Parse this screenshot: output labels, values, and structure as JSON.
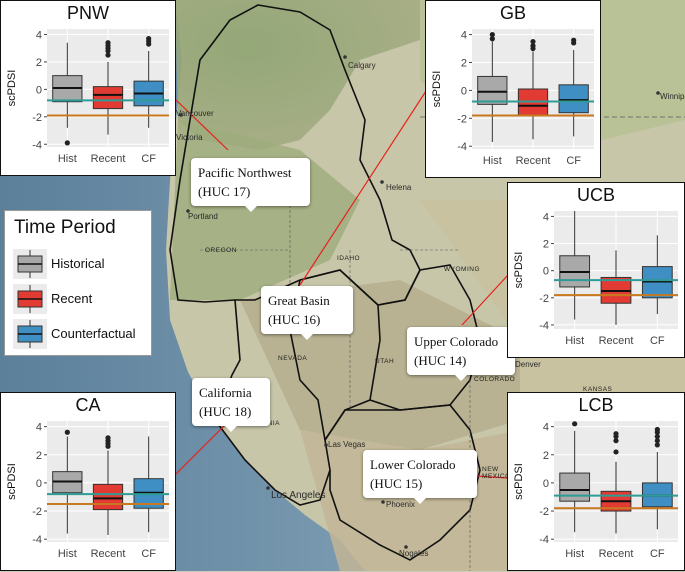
{
  "colors": {
    "historical": "#a9a9a9",
    "recent": "#e23b33",
    "counterfactual": "#3f8fc4",
    "recent_line": "#c8781f",
    "hist_line": "#2f9b95",
    "connector": "#e8201c",
    "border": "#111111"
  },
  "legend": {
    "title": "Time Period",
    "items": [
      {
        "label": "Historical",
        "color_key": "historical"
      },
      {
        "label": "Recent",
        "color_key": "recent"
      },
      {
        "label": "Counterfactual",
        "color_key": "counterfactual"
      }
    ]
  },
  "regions": [
    {
      "name": "Pacific Northwest",
      "huc": "(HUC 17)"
    },
    {
      "name": "Great Basin",
      "huc": "(HUC 16)"
    },
    {
      "name": "Upper Colorado",
      "huc": "(HUC 14)"
    },
    {
      "name": "California",
      "huc": "(HUC 18)"
    },
    {
      "name": "Lower Colorado",
      "huc": "(HUC 15)"
    }
  ],
  "cities": [
    "Vancouver",
    "Victoria",
    "Calgary",
    "Winnipeg",
    "Helena",
    "Portland",
    "Denver",
    "Las Vegas",
    "Los Angeles",
    "Phoenix",
    "Nogales"
  ],
  "states": [
    "OREGON",
    "IDAHO",
    "WYOMING",
    "NEVADA",
    "UTAH",
    "COLORADO",
    "KANSAS",
    "CALIFORNIA",
    "NEW MEXICO"
  ],
  "chart_data": [
    {
      "type": "box",
      "title": "PNW",
      "ylabel": "scPDSI",
      "categories": [
        "Hist",
        "Recent",
        "CF"
      ],
      "ylim": [
        -4.2,
        4.4
      ],
      "yticks": [
        -4,
        -2,
        0,
        2,
        4
      ],
      "hist_mean_line": -0.8,
      "recent_mean_line": -1.9,
      "boxes": [
        {
          "whislo": -2.8,
          "q1": -0.9,
          "med": 0.1,
          "q3": 1.0,
          "whishi": 3.4,
          "outliers": [
            -3.9
          ]
        },
        {
          "whislo": -3.3,
          "q1": -1.4,
          "med": -0.4,
          "q3": 0.2,
          "whishi": 2.0,
          "outliers": [
            2.5,
            2.8,
            3.0,
            3.2,
            3.4
          ]
        },
        {
          "whislo": -2.8,
          "q1": -1.2,
          "med": -0.3,
          "q3": 0.6,
          "whishi": 2.8,
          "outliers": [
            3.3,
            3.5,
            3.7
          ]
        }
      ]
    },
    {
      "type": "box",
      "title": "GB",
      "ylabel": "scPDSI",
      "categories": [
        "Hist",
        "Recent",
        "CF"
      ],
      "ylim": [
        -4.2,
        4.4
      ],
      "yticks": [
        -4,
        -2,
        0,
        2,
        4
      ],
      "hist_mean_line": -0.8,
      "recent_mean_line": -1.8,
      "boxes": [
        {
          "whislo": -3.7,
          "q1": -1.0,
          "med": -0.1,
          "q3": 1.0,
          "whishi": 3.5,
          "outliers": [
            3.7,
            4.0
          ]
        },
        {
          "whislo": -3.5,
          "q1": -1.8,
          "med": -1.1,
          "q3": 0.1,
          "whishi": 2.8,
          "outliers": [
            3.0,
            3.2,
            3.5
          ]
        },
        {
          "whislo": -3.3,
          "q1": -1.6,
          "med": -0.7,
          "q3": 0.4,
          "whishi": 2.9,
          "outliers": [
            3.4,
            3.6
          ]
        }
      ]
    },
    {
      "type": "box",
      "title": "UCB",
      "ylabel": "scPDSI",
      "categories": [
        "Hist",
        "Recent",
        "CF"
      ],
      "ylim": [
        -4.3,
        4.4
      ],
      "yticks": [
        -4,
        -2,
        0,
        2,
        4
      ],
      "hist_mean_line": -0.7,
      "recent_mean_line": -1.8,
      "boxes": [
        {
          "whislo": -3.6,
          "q1": -1.2,
          "med": -0.1,
          "q3": 1.1,
          "whishi": 4.4,
          "outliers": []
        },
        {
          "whislo": -4.0,
          "q1": -2.4,
          "med": -1.5,
          "q3": -0.5,
          "whishi": 1.5,
          "outliers": []
        },
        {
          "whislo": -3.2,
          "q1": -2.0,
          "med": -0.8,
          "q3": 0.3,
          "whishi": 2.6,
          "outliers": []
        }
      ]
    },
    {
      "type": "box",
      "title": "CA",
      "ylabel": "scPDSI",
      "categories": [
        "Hist",
        "Recent",
        "CF"
      ],
      "ylim": [
        -4.2,
        4.4
      ],
      "yticks": [
        -4,
        -2,
        0,
        2,
        4
      ],
      "hist_mean_line": -0.8,
      "recent_mean_line": -1.5,
      "boxes": [
        {
          "whislo": -3.6,
          "q1": -0.7,
          "med": 0.1,
          "q3": 0.8,
          "whishi": 3.3,
          "outliers": [
            3.6
          ]
        },
        {
          "whislo": -3.7,
          "q1": -1.9,
          "med": -1.1,
          "q3": -0.1,
          "whishi": 2.3,
          "outliers": [
            2.6,
            2.8,
            3.0,
            3.2
          ]
        },
        {
          "whislo": -3.5,
          "q1": -1.8,
          "med": -0.7,
          "q3": 0.3,
          "whishi": 3.3,
          "outliers": []
        }
      ]
    },
    {
      "type": "box",
      "title": "LCB",
      "ylabel": "scPDSI",
      "categories": [
        "Hist",
        "Recent",
        "CF"
      ],
      "ylim": [
        -4.2,
        4.4
      ],
      "yticks": [
        -4,
        -2,
        0,
        2,
        4
      ],
      "hist_mean_line": -0.9,
      "recent_mean_line": -1.8,
      "boxes": [
        {
          "whislo": -3.5,
          "q1": -1.3,
          "med": -0.5,
          "q3": 0.7,
          "whishi": 3.7,
          "outliers": [
            4.2
          ]
        },
        {
          "whislo": -3.6,
          "q1": -2.0,
          "med": -1.3,
          "q3": -0.6,
          "whishi": 1.5,
          "outliers": [
            2.2,
            3.0,
            3.3,
            3.5
          ]
        },
        {
          "whislo": -3.3,
          "q1": -1.7,
          "med": -0.9,
          "q3": 0.0,
          "whishi": 2.2,
          "outliers": [
            2.7,
            3.0,
            3.3,
            3.6,
            3.8
          ]
        }
      ]
    }
  ]
}
